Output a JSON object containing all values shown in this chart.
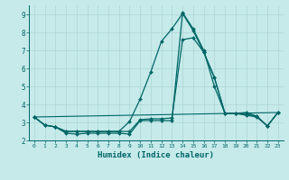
{
  "xlabel": "Humidex (Indice chaleur)",
  "bg_color": "#c6eaea",
  "grid_color": "#add4d4",
  "line_color": "#006666",
  "xlim": [
    -0.5,
    23.5
  ],
  "ylim": [
    2,
    9.5
  ],
  "yticks": [
    2,
    3,
    4,
    5,
    6,
    7,
    8,
    9
  ],
  "xtick_labels": [
    "0",
    "1",
    "2",
    "3",
    "4",
    "5",
    "6",
    "7",
    "8",
    "9",
    "10",
    "11",
    "12",
    "13",
    "14",
    "15",
    "16",
    "17",
    "18",
    "19",
    "20",
    "21",
    "22",
    "23"
  ],
  "xtick_vals": [
    0,
    1,
    2,
    3,
    4,
    5,
    6,
    7,
    8,
    9,
    10,
    11,
    12,
    13,
    14,
    15,
    16,
    17,
    18,
    19,
    20,
    21,
    22,
    23
  ],
  "series": [
    {
      "x": [
        0,
        1,
        2,
        3,
        4,
        5,
        6,
        7,
        8,
        9,
        10,
        11,
        12,
        13,
        14,
        15,
        16,
        17,
        18,
        19,
        20,
        21,
        22,
        23
      ],
      "y": [
        3.3,
        2.85,
        2.75,
        2.4,
        2.35,
        2.4,
        2.4,
        2.4,
        2.4,
        2.35,
        3.1,
        3.1,
        3.1,
        3.1,
        9.1,
        8.2,
        7.0,
        5.0,
        3.5,
        3.5,
        3.4,
        3.3,
        2.8,
        3.55
      ],
      "marker": "D",
      "markersize": 2.0,
      "linewidth": 0.9
    },
    {
      "x": [
        0,
        1,
        2,
        3,
        4,
        5,
        6,
        7,
        8,
        9,
        10,
        11,
        12,
        13,
        14,
        15,
        16,
        17,
        18,
        19,
        20,
        21,
        22,
        23
      ],
      "y": [
        3.3,
        2.85,
        2.75,
        2.5,
        2.5,
        2.5,
        2.5,
        2.5,
        2.5,
        2.5,
        3.15,
        3.2,
        3.2,
        3.25,
        7.6,
        7.7,
        6.9,
        5.5,
        3.5,
        3.5,
        3.45,
        3.35,
        2.8,
        3.55
      ],
      "marker": "D",
      "markersize": 2.0,
      "linewidth": 0.9
    },
    {
      "x": [
        0,
        1,
        2,
        3,
        4,
        5,
        6,
        7,
        8,
        9,
        10,
        11,
        12,
        13,
        14,
        15,
        16,
        17,
        18,
        19,
        20,
        21,
        22,
        23
      ],
      "y": [
        3.3,
        2.85,
        2.75,
        2.5,
        2.5,
        2.5,
        2.5,
        2.5,
        2.5,
        3.05,
        4.3,
        5.8,
        7.5,
        8.2,
        9.05,
        8.1,
        6.9,
        5.5,
        3.5,
        3.5,
        3.55,
        3.35,
        2.8,
        3.55
      ],
      "marker": "D",
      "markersize": 2.0,
      "linewidth": 0.9
    },
    {
      "x": [
        0,
        23
      ],
      "y": [
        3.3,
        3.55
      ],
      "marker": null,
      "markersize": 0,
      "linewidth": 0.8
    }
  ]
}
